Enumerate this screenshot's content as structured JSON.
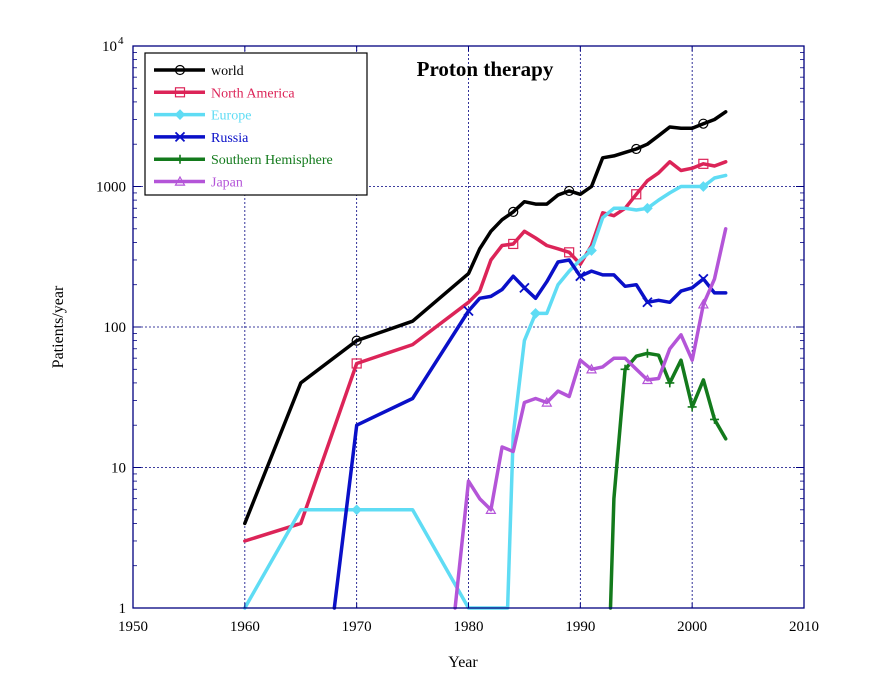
{
  "chart_data": {
    "type": "line",
    "title": "Proton therapy",
    "xlabel": "Year",
    "ylabel": "Patients/year",
    "xlim": [
      1950,
      2010
    ],
    "ylim": [
      1,
      10000
    ],
    "yscale": "log",
    "grid": true,
    "legend_position": "top-left",
    "x_ticks": [
      "1950",
      "1960",
      "1970",
      "1980",
      "1990",
      "2000",
      "2010"
    ],
    "y_ticks": [
      {
        "value": 1,
        "label": "1",
        "sup": ""
      },
      {
        "value": 10,
        "label": "10",
        "sup": ""
      },
      {
        "value": 100,
        "label": "100",
        "sup": ""
      },
      {
        "value": 1000,
        "label": "1000",
        "sup": ""
      },
      {
        "value": 10000,
        "label": "10",
        "sup": "4"
      }
    ],
    "series": [
      {
        "name": "world",
        "color": "#000000",
        "marker": "circle",
        "x": [
          1960,
          1965,
          1970,
          1975,
          1980,
          1981,
          1982,
          1983,
          1984,
          1985,
          1986,
          1987,
          1988,
          1989,
          1990,
          1991,
          1992,
          1993,
          1994,
          1995,
          1996,
          1997,
          1998,
          1999,
          2000,
          2001,
          2002,
          2003
        ],
        "y": [
          4,
          40,
          80,
          110,
          240,
          360,
          480,
          580,
          660,
          780,
          750,
          750,
          870,
          930,
          880,
          1000,
          1600,
          1650,
          1750,
          1850,
          2000,
          2300,
          2650,
          2600,
          2600,
          2800,
          3000,
          3400
        ],
        "marker_x": [
          1970,
          1984,
          1989,
          1995,
          2001
        ]
      },
      {
        "name": "North America",
        "color": "#dc2458",
        "marker": "square",
        "x": [
          1960,
          1965,
          1970,
          1975,
          1980,
          1981,
          1982,
          1983,
          1984,
          1985,
          1986,
          1987,
          1988,
          1989,
          1990,
          1991,
          1992,
          1993,
          1994,
          1995,
          1996,
          1997,
          1998,
          1999,
          2000,
          2001,
          2002,
          2003
        ],
        "y": [
          3,
          4,
          55,
          75,
          150,
          180,
          300,
          380,
          390,
          480,
          430,
          380,
          360,
          340,
          280,
          380,
          650,
          620,
          700,
          880,
          1100,
          1250,
          1500,
          1300,
          1350,
          1450,
          1400,
          1500
        ],
        "marker_x": [
          1970,
          1984,
          1989,
          1995,
          2001
        ]
      },
      {
        "name": "Europe",
        "color": "#5fdcf4",
        "marker": "diamond",
        "x": [
          1960,
          1965,
          1970,
          1975,
          1980,
          1983.5,
          1984,
          1985,
          1986,
          1987,
          1988,
          1989,
          1990,
          1991,
          1992,
          1993,
          1994,
          1995,
          1996,
          1997,
          1998,
          1999,
          2000,
          2001,
          2002,
          2003
        ],
        "y": [
          1,
          5,
          5,
          5,
          1,
          1,
          17,
          80,
          125,
          125,
          200,
          250,
          300,
          350,
          600,
          700,
          700,
          680,
          700,
          800,
          900,
          1000,
          1000,
          1000,
          1150,
          1200
        ],
        "marker_x": [
          1970,
          1986,
          1991,
          1996,
          2001
        ]
      },
      {
        "name": "Russia",
        "color": "#0a10c8",
        "marker": "x",
        "x": [
          1968,
          1970,
          1975,
          1980,
          1981,
          1982,
          1983,
          1984,
          1985,
          1986,
          1987,
          1988,
          1989,
          1990,
          1991,
          1992,
          1993,
          1994,
          1995,
          1996,
          1997,
          1998,
          1999,
          2000,
          2001,
          2002,
          2003
        ],
        "y": [
          1,
          20,
          31,
          130,
          160,
          165,
          185,
          230,
          190,
          160,
          210,
          290,
          300,
          230,
          250,
          235,
          235,
          195,
          200,
          150,
          155,
          150,
          180,
          190,
          220,
          175,
          175
        ],
        "marker_x": [
          1980,
          1985,
          1990,
          1996,
          2001
        ]
      },
      {
        "name": "Southern Hemisphere",
        "color": "#137a1c",
        "marker": "plus",
        "x": [
          1992.7,
          1993,
          1994,
          1995,
          1996,
          1997,
          1998,
          1999,
          2000,
          2001,
          2002,
          2003
        ],
        "y": [
          1,
          6,
          50,
          62,
          65,
          63,
          40,
          58,
          27,
          42,
          22,
          16
        ],
        "marker_x": [
          1994,
          1996,
          1998,
          2000,
          2002
        ]
      },
      {
        "name": "Japan",
        "color": "#b455d8",
        "marker": "triangle",
        "x": [
          1978.8,
          1980,
          1981,
          1982,
          1983,
          1984,
          1985,
          1986,
          1987,
          1988,
          1989,
          1990,
          1991,
          1992,
          1993,
          1994,
          1995,
          1996,
          1997,
          1998,
          1999,
          2000,
          2001,
          2002,
          2003
        ],
        "y": [
          1,
          8,
          6,
          5,
          14,
          13,
          29,
          31,
          29,
          35,
          32,
          58,
          50,
          52,
          60,
          60,
          50,
          42,
          43,
          70,
          88,
          58,
          145,
          220,
          500
        ],
        "marker_x": [
          1982,
          1987,
          1991,
          1996,
          2001
        ]
      }
    ]
  }
}
